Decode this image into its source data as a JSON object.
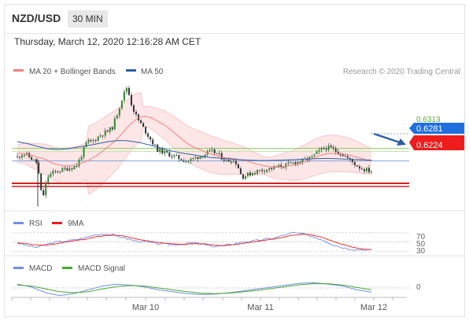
{
  "header": {
    "pair": "NZD/USD",
    "timeframe": "30 MIN",
    "datetime": "Thursday, March 12, 2020 12:16:28 AM CET"
  },
  "legend": {
    "bollinger": "MA 20 + Bollinger Bands",
    "ma50": "MA 50",
    "credit": "Research © 2020 Trading Central",
    "rsi": "RSI",
    "rsi_ma": "9MA",
    "macd": "MACD",
    "macd_signal": "MACD Signal"
  },
  "colors": {
    "candle": "#2c8a2c",
    "ma20": "#f28080",
    "ma50": "#2b5ea7",
    "band_fill": "#fde2e2",
    "support": "#d42020",
    "resistance": "#8fd06a",
    "current_tag": "#1f6fe0",
    "rsi": "#6f8fe8",
    "macd": "#6f8fe8",
    "macd_signal": "#4aa832"
  },
  "chart_data": [
    {
      "type": "candlestick",
      "title": "NZD/USD 30 MIN",
      "y_range": [
        0.616,
        0.649
      ],
      "levels": {
        "resistance": "0.6313",
        "current": "0.6281",
        "support": "0.6224"
      },
      "x_ticks": [
        "Mar 10",
        "Mar 11",
        "Mar 12"
      ],
      "close_path": [
        0.629,
        0.63,
        0.6295,
        0.6285,
        0.6275,
        0.618,
        0.624,
        0.625,
        0.6255,
        0.6258,
        0.6262,
        0.6265,
        0.627,
        0.63,
        0.633,
        0.633,
        0.634,
        0.635,
        0.6355,
        0.6365,
        0.64,
        0.644,
        0.647,
        0.642,
        0.639,
        0.637,
        0.635,
        0.633,
        0.631,
        0.6305,
        0.63,
        0.6295,
        0.629,
        0.6285,
        0.628,
        0.6285,
        0.629,
        0.6295,
        0.63,
        0.6305,
        0.63,
        0.629,
        0.628,
        0.6285,
        0.6275,
        0.624,
        0.6245,
        0.625,
        0.6255,
        0.6258,
        0.626,
        0.6262,
        0.6265,
        0.6268,
        0.627,
        0.6275,
        0.6278,
        0.628,
        0.6285,
        0.629,
        0.63,
        0.631,
        0.6315,
        0.6312,
        0.6305,
        0.63,
        0.629,
        0.628,
        0.627,
        0.6262,
        0.6258,
        0.6255
      ],
      "ma20_path": [
        0.63,
        0.63,
        0.6295,
        0.629,
        0.6285,
        0.6275,
        0.627,
        0.6268,
        0.627,
        0.6275,
        0.6282,
        0.6292,
        0.6305,
        0.632,
        0.6335,
        0.6355,
        0.6375,
        0.639,
        0.6395,
        0.639,
        0.638,
        0.637,
        0.6355,
        0.634,
        0.6325,
        0.6315,
        0.6308,
        0.63,
        0.6295,
        0.629,
        0.6288,
        0.6285,
        0.6282,
        0.6278,
        0.6272,
        0.6268,
        0.6265,
        0.6265,
        0.6268,
        0.627,
        0.6275,
        0.6282,
        0.629,
        0.6296,
        0.63,
        0.63,
        0.6298,
        0.6295,
        0.629,
        0.6285,
        0.628
      ],
      "ma50_path": [
        0.633,
        0.6325,
        0.6318,
        0.6312,
        0.631,
        0.6312,
        0.6316,
        0.632,
        0.6325,
        0.633,
        0.6333,
        0.6332,
        0.6328,
        0.6322,
        0.6315,
        0.6308,
        0.6302,
        0.6298,
        0.6294,
        0.629,
        0.6288,
        0.6286,
        0.6284,
        0.6283,
        0.6282,
        0.6282,
        0.6283,
        0.6284,
        0.6285,
        0.6286,
        0.6287,
        0.6287,
        0.6286,
        0.6285,
        0.6284,
        0.6283
      ]
    },
    {
      "type": "line",
      "title": "RSI",
      "series": [
        {
          "name": "RSI"
        },
        {
          "name": "9MA"
        }
      ],
      "y_ticks": [
        "70",
        "50",
        "30"
      ],
      "y_range": [
        20,
        80
      ],
      "values": [
        48,
        42,
        38,
        45,
        50,
        52,
        55,
        60,
        66,
        68,
        64,
        58,
        52,
        50,
        47,
        45,
        44,
        46,
        48,
        44,
        40,
        42,
        46,
        50,
        52,
        55,
        58,
        64,
        70,
        68,
        62,
        55,
        45,
        38,
        34,
        33,
        32
      ],
      "ma_values": [
        48,
        46,
        43,
        43,
        46,
        50,
        53,
        56,
        61,
        64,
        65,
        62,
        57,
        53,
        50,
        47,
        46,
        45,
        46,
        46,
        43,
        42,
        44,
        47,
        50,
        53,
        56,
        60,
        65,
        67,
        65,
        60,
        52,
        45,
        39,
        35,
        33
      ]
    },
    {
      "type": "line",
      "title": "MACD",
      "series": [
        {
          "name": "MACD"
        },
        {
          "name": "MACD Signal"
        }
      ],
      "y_ticks": [
        "0"
      ],
      "values": [
        0.0008,
        0.0002,
        -0.001,
        -0.0016,
        -0.0012,
        -0.0004,
        0.0004,
        0.0008,
        0.0006,
        0.0002,
        -0.0004,
        -0.0008,
        -0.0012,
        -0.0014,
        -0.0013,
        -0.001,
        -0.0006,
        -0.0002,
        0.0002,
        0.0006,
        0.001,
        0.0011,
        0.0008,
        0.0004,
        -0.0004,
        -0.0009
      ],
      "signal_values": [
        0.0006,
        0.0004,
        -0.0002,
        -0.0008,
        -0.001,
        -0.0008,
        -0.0002,
        0.0003,
        0.0005,
        0.0004,
        0.0,
        -0.0004,
        -0.0008,
        -0.0011,
        -0.0012,
        -0.0011,
        -0.0008,
        -0.0005,
        -0.0001,
        0.0003,
        0.0007,
        0.0009,
        0.0009,
        0.0006,
        0.0001,
        -0.0004
      ]
    }
  ]
}
